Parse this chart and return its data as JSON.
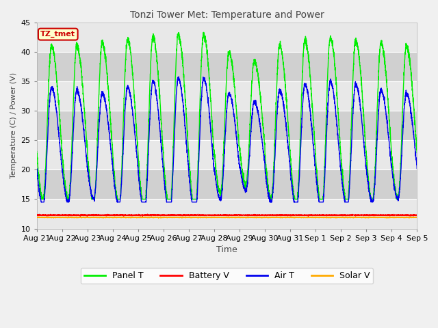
{
  "title": "Tonzi Tower Met: Temperature and Power",
  "xlabel": "Time",
  "ylabel": "Temperature (C) / Power (V)",
  "ylim": [
    10,
    45
  ],
  "n_days": 15,
  "xtick_labels": [
    "Aug 21",
    "Aug 22",
    "Aug 23",
    "Aug 24",
    "Aug 25",
    "Aug 26",
    "Aug 27",
    "Aug 28",
    "Aug 29",
    "Aug 30",
    "Aug 31",
    "Sep 1",
    "Sep 2",
    "Sep 3",
    "Sep 4",
    "Sep 5"
  ],
  "legend_entries": [
    "Panel T",
    "Battery V",
    "Air T",
    "Solar V"
  ],
  "legend_colors": [
    "#00ee00",
    "#ff0000",
    "#0000ee",
    "#ffaa00"
  ],
  "plot_bg_color": "#d8d8d8",
  "fig_bg_color": "#f0f0f0",
  "annotation_text": "TZ_tmet",
  "annotation_bg": "#ffffcc",
  "annotation_fg": "#cc0000",
  "grid_color": "#ffffff",
  "stripe_color1": "#e8e8e8",
  "stripe_color2": "#d0d0d0",
  "battery_v": 12.3,
  "solar_v": 11.9
}
